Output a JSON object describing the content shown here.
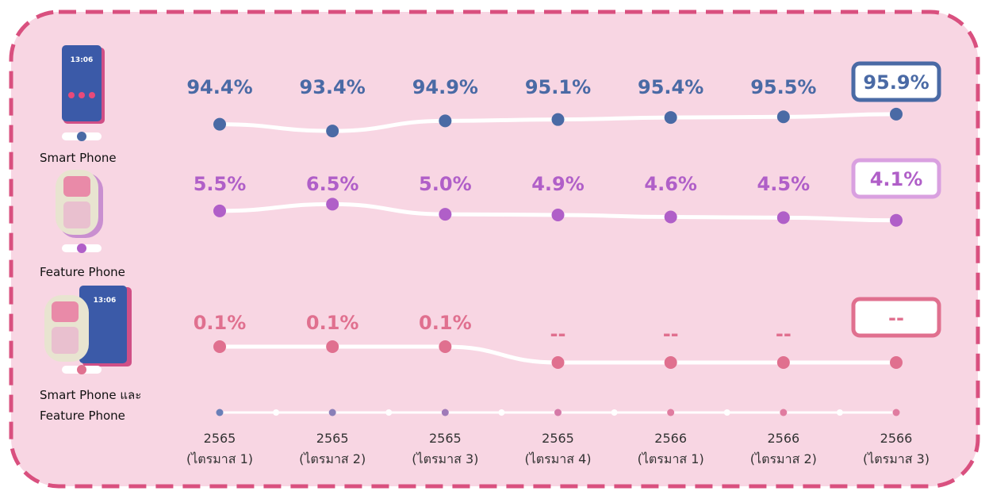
{
  "chart_data": {
    "type": "line",
    "categories": [
      [
        "2565",
        "(ไตรมาส 1)"
      ],
      [
        "2565",
        "(ไตรมาส 2)"
      ],
      [
        "2565",
        "(ไตรมาส 3)"
      ],
      [
        "2565",
        "(ไตรมาส 4)"
      ],
      [
        "2566",
        "(ไตรมาส 1)"
      ],
      [
        "2566",
        "(ไตรมาส 2)"
      ],
      [
        "2566",
        "(ไตรมาส 3)"
      ]
    ],
    "series": [
      {
        "name": "Smart Phone",
        "color": "#4a6aa5",
        "values": [
          94.4,
          93.4,
          94.9,
          95.1,
          95.4,
          95.5,
          95.9
        ],
        "value_labels": [
          "94.4%",
          "93.4%",
          "94.9%",
          "95.1%",
          "95.4%",
          "95.5%",
          "95.9%"
        ]
      },
      {
        "name": "Feature Phone",
        "color": "#b05fc8",
        "values": [
          5.5,
          6.5,
          5.0,
          4.9,
          4.6,
          4.5,
          4.1
        ],
        "value_labels": [
          "5.5%",
          "6.5%",
          "5.0%",
          "4.9%",
          "4.6%",
          "4.5%",
          "4.1%"
        ]
      },
      {
        "name": "Smart Phone และ Feature Phone",
        "color": "#e0708f",
        "values": [
          0.1,
          0.1,
          0.1,
          null,
          null,
          null,
          null
        ],
        "value_labels": [
          "0.1%",
          "0.1%",
          "0.1%",
          "--",
          "--",
          "--",
          "--"
        ]
      }
    ]
  }
}
